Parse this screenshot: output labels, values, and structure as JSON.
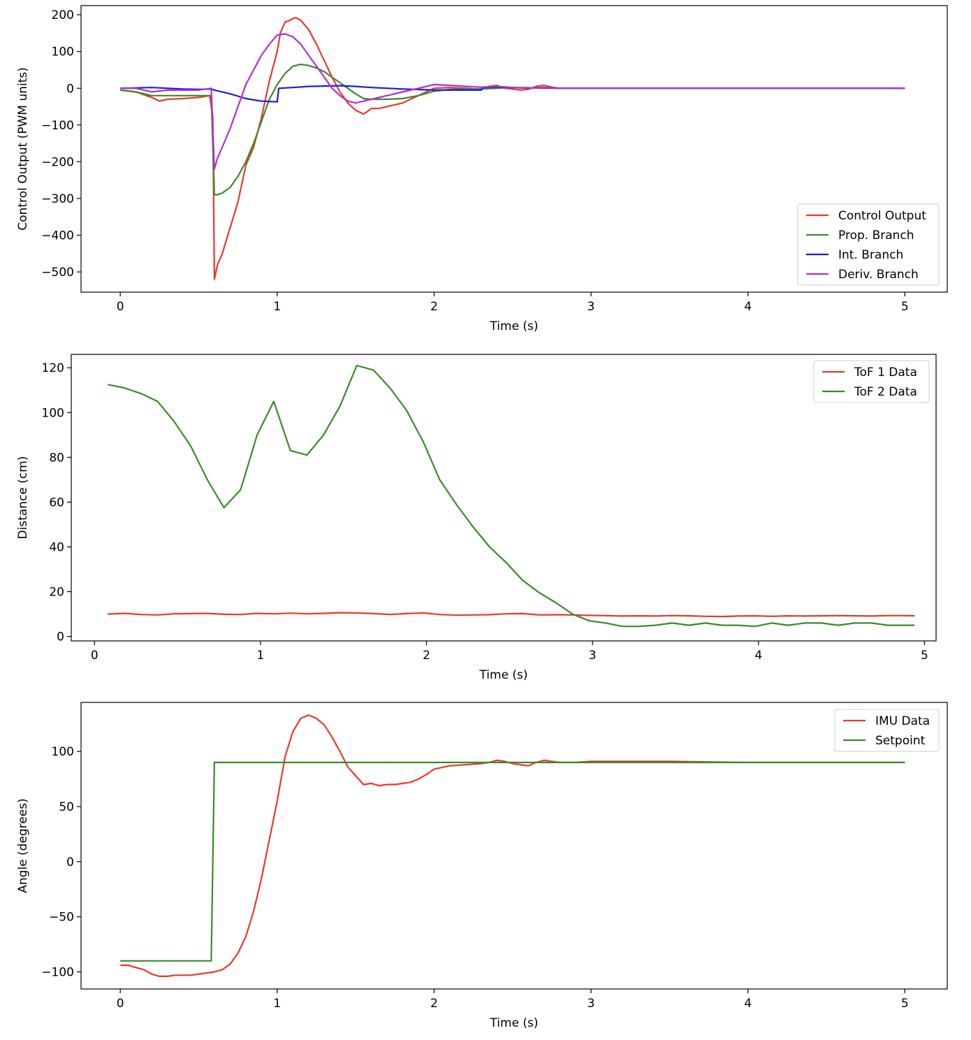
{
  "chart_data": [
    {
      "type": "line",
      "xlabel": "Time (s)",
      "ylabel": "Control Output (PWM units)",
      "xlim": [
        -0.25,
        5.27
      ],
      "ylim": [
        -555,
        225
      ],
      "xticks": [
        0,
        1,
        2,
        3,
        4,
        5
      ],
      "yticks": [
        -500,
        -400,
        -300,
        -200,
        -100,
        0,
        100,
        200
      ],
      "tick_labels_x": [
        "0",
        "1",
        "2",
        "3",
        "4",
        "5"
      ],
      "tick_labels_y": [
        "−500",
        "−400",
        "−300",
        "−200",
        "−100",
        "0",
        "100",
        "200"
      ],
      "legend_position": "lower-right",
      "series": [
        {
          "name": "Control Output",
          "color": "#e8392c",
          "x": [
            0,
            0.1,
            0.2,
            0.25,
            0.3,
            0.4,
            0.5,
            0.57,
            0.59,
            0.6,
            0.62,
            0.65,
            0.7,
            0.75,
            0.8,
            0.85,
            0.9,
            0.95,
            1.0,
            1.02,
            1.05,
            1.08,
            1.1,
            1.12,
            1.15,
            1.2,
            1.25,
            1.3,
            1.35,
            1.4,
            1.45,
            1.5,
            1.55,
            1.57,
            1.6,
            1.65,
            1.7,
            1.8,
            1.9,
            2.0,
            2.1,
            2.2,
            2.3,
            2.35,
            2.4,
            2.45,
            2.5,
            2.55,
            2.6,
            2.65,
            2.7,
            2.75,
            2.8,
            3.0,
            3.5,
            4.0,
            4.5,
            5.0
          ],
          "y": [
            -5,
            -10,
            -25,
            -35,
            -30,
            -28,
            -25,
            -20,
            -80,
            -520,
            -480,
            -450,
            -380,
            -310,
            -210,
            -160,
            -80,
            20,
            100,
            150,
            180,
            185,
            190,
            192,
            185,
            160,
            120,
            75,
            30,
            -10,
            -40,
            -60,
            -70,
            -65,
            -55,
            -55,
            -50,
            -40,
            -20,
            0,
            2,
            0,
            -3,
            5,
            8,
            0,
            -2,
            -5,
            -3,
            5,
            8,
            3,
            0,
            0,
            0,
            0,
            0,
            0
          ]
        },
        {
          "name": "Prop. Branch",
          "color": "#3a8a2a",
          "x": [
            0,
            0.1,
            0.2,
            0.3,
            0.4,
            0.5,
            0.58,
            0.6,
            0.62,
            0.65,
            0.7,
            0.75,
            0.8,
            0.85,
            0.9,
            0.95,
            1.0,
            1.05,
            1.1,
            1.15,
            1.2,
            1.25,
            1.3,
            1.35,
            1.4,
            1.45,
            1.5,
            1.55,
            1.6,
            1.7,
            1.8,
            1.9,
            2.0,
            2.1,
            2.2,
            2.3,
            2.4,
            2.5,
            2.6,
            2.7,
            2.8,
            3.0,
            3.5,
            4.0,
            4.5,
            5.0
          ],
          "y": [
            -5,
            -10,
            -20,
            -20,
            -20,
            -20,
            -20,
            -290,
            -290,
            -285,
            -270,
            -240,
            -200,
            -150,
            -90,
            -30,
            10,
            40,
            60,
            65,
            62,
            55,
            45,
            30,
            15,
            0,
            -15,
            -28,
            -30,
            -30,
            -28,
            -20,
            -8,
            -3,
            -2,
            -2,
            0,
            2,
            0,
            2,
            0,
            0,
            0,
            0,
            0,
            0
          ]
        },
        {
          "name": "Int. Branch",
          "color": "#1a1aee",
          "x": [
            0,
            0.2,
            0.3,
            0.4,
            0.5,
            0.58,
            0.6,
            0.7,
            0.8,
            0.9,
            1.0,
            1.01,
            1.1,
            1.2,
            1.3,
            1.4,
            1.5,
            1.6,
            1.8,
            2.0,
            2.2,
            2.3,
            2.31,
            2.4,
            2.5,
            2.6,
            2.8,
            3.0,
            4.0,
            5.0
          ],
          "y": [
            0,
            2,
            0,
            -2,
            -3,
            -2,
            -5,
            -15,
            -28,
            -35,
            -37,
            0,
            2,
            5,
            6,
            7,
            5,
            2,
            -2,
            -5,
            -5,
            -5,
            2,
            3,
            2,
            1,
            0,
            0,
            0,
            0
          ]
        },
        {
          "name": "Deriv. Branch",
          "color": "#b030d0",
          "x": [
            0,
            0.1,
            0.2,
            0.3,
            0.4,
            0.5,
            0.58,
            0.6,
            0.62,
            0.65,
            0.7,
            0.75,
            0.8,
            0.85,
            0.9,
            0.95,
            1.0,
            1.05,
            1.1,
            1.15,
            1.2,
            1.25,
            1.3,
            1.35,
            1.4,
            1.45,
            1.5,
            1.55,
            1.6,
            1.7,
            1.8,
            1.9,
            2.0,
            2.1,
            2.2,
            2.3,
            2.4,
            2.5,
            2.6,
            2.7,
            2.8,
            3.0,
            4.0,
            5.0
          ],
          "y": [
            0,
            0,
            -10,
            -5,
            -5,
            -5,
            0,
            -220,
            -190,
            -160,
            -110,
            -50,
            10,
            50,
            90,
            120,
            145,
            148,
            140,
            120,
            90,
            60,
            30,
            0,
            -20,
            -35,
            -40,
            -35,
            -30,
            -20,
            -10,
            0,
            10,
            8,
            5,
            3,
            5,
            2,
            0,
            2,
            0,
            0,
            0,
            0
          ]
        }
      ]
    },
    {
      "type": "line",
      "xlabel": "Time (s)",
      "ylabel": "Distance (cm)",
      "xlim": [
        -0.14,
        5.07
      ],
      "ylim": [
        -2,
        126
      ],
      "xticks": [
        0,
        1,
        2,
        3,
        4,
        5
      ],
      "yticks": [
        0,
        20,
        40,
        60,
        80,
        100,
        120
      ],
      "tick_labels_x": [
        "0",
        "1",
        "2",
        "3",
        "4",
        "5"
      ],
      "tick_labels_y": [
        "0",
        "20",
        "40",
        "60",
        "80",
        "100",
        "120"
      ],
      "legend_position": "top-right",
      "series": [
        {
          "name": "ToF 1 Data",
          "color": "#e8392c",
          "x": [
            0.08,
            0.18,
            0.28,
            0.38,
            0.48,
            0.58,
            0.68,
            0.78,
            0.88,
            0.98,
            1.08,
            1.18,
            1.28,
            1.38,
            1.48,
            1.58,
            1.68,
            1.78,
            1.88,
            1.98,
            2.08,
            2.18,
            2.28,
            2.38,
            2.48,
            2.58,
            2.68,
            2.78,
            2.88,
            2.98,
            3.08,
            3.18,
            3.28,
            3.38,
            3.48,
            3.58,
            3.68,
            3.78,
            3.88,
            3.98,
            4.08,
            4.18,
            4.28,
            4.38,
            4.48,
            4.58,
            4.68,
            4.78,
            4.88,
            4.94
          ],
          "y": [
            10,
            10.3,
            9.8,
            9.6,
            10.1,
            10.2,
            10.3,
            9.9,
            9.8,
            10.3,
            10.1,
            10.4,
            10.1,
            10.3,
            10.6,
            10.5,
            10.2,
            9.8,
            10.2,
            10.5,
            9.8,
            9.5,
            9.6,
            9.7,
            10.1,
            10.2,
            9.6,
            9.7,
            9.6,
            9.4,
            9.3,
            9.1,
            9.2,
            9.1,
            9.3,
            9.2,
            9.0,
            8.9,
            9.1,
            9.2,
            9.0,
            9.2,
            9.1,
            9.2,
            9.3,
            9.2,
            9.1,
            9.3,
            9.3,
            9.2
          ]
        },
        {
          "name": "ToF 2 Data",
          "color": "#3a8a2a",
          "x": [
            0.08,
            0.18,
            0.28,
            0.38,
            0.48,
            0.58,
            0.68,
            0.78,
            0.88,
            0.98,
            1.08,
            1.18,
            1.28,
            1.38,
            1.48,
            1.58,
            1.68,
            1.78,
            1.88,
            1.98,
            2.08,
            2.18,
            2.28,
            2.38,
            2.48,
            2.58,
            2.68,
            2.78,
            2.88,
            2.98,
            3.08,
            3.18,
            3.28,
            3.38,
            3.48,
            3.58,
            3.68,
            3.78,
            3.88,
            3.98,
            4.08,
            4.18,
            4.28,
            4.38,
            4.48,
            4.58,
            4.68,
            4.78,
            4.88,
            4.94
          ],
          "y": [
            112.5,
            111,
            108.5,
            105,
            96,
            85,
            70,
            57.5,
            65.5,
            90,
            105,
            83,
            81,
            90,
            103,
            121,
            119,
            111,
            101,
            87,
            70,
            59,
            49,
            40,
            33,
            25,
            19.5,
            15,
            10,
            7,
            6,
            4.5,
            4.5,
            5,
            6,
            5,
            6,
            5,
            5,
            4.5,
            6,
            5,
            6,
            6,
            5,
            6,
            6,
            5,
            5,
            5
          ]
        }
      ]
    },
    {
      "type": "line",
      "xlabel": "Time (s)",
      "ylabel": "Angle (degrees)",
      "xlim": [
        -0.25,
        5.27
      ],
      "ylim": [
        -115.5,
        144.5
      ],
      "xticks": [
        0,
        1,
        2,
        3,
        4,
        5
      ],
      "yticks": [
        -100,
        -50,
        0,
        50,
        100
      ],
      "tick_labels_x": [
        "0",
        "1",
        "2",
        "3",
        "4",
        "5"
      ],
      "tick_labels_y": [
        "−100",
        "−50",
        "0",
        "50",
        "100"
      ],
      "legend_position": "top-right",
      "series": [
        {
          "name": "IMU Data",
          "color": "#e8392c",
          "x": [
            0,
            0.05,
            0.1,
            0.15,
            0.2,
            0.25,
            0.3,
            0.35,
            0.4,
            0.45,
            0.5,
            0.55,
            0.6,
            0.65,
            0.7,
            0.75,
            0.8,
            0.85,
            0.9,
            0.95,
            1.0,
            1.05,
            1.1,
            1.15,
            1.2,
            1.25,
            1.3,
            1.35,
            1.4,
            1.45,
            1.5,
            1.55,
            1.6,
            1.65,
            1.7,
            1.75,
            1.8,
            1.85,
            1.9,
            1.95,
            2.0,
            2.1,
            2.2,
            2.3,
            2.35,
            2.4,
            2.45,
            2.5,
            2.55,
            2.6,
            2.65,
            2.7,
            2.75,
            2.8,
            2.9,
            3.0,
            3.5,
            4.0,
            4.5,
            5.0
          ],
          "y": [
            -94,
            -94,
            -96,
            -98,
            -102,
            -104,
            -104,
            -103,
            -103,
            -103,
            -102,
            -101,
            -100,
            -98,
            -93,
            -83,
            -68,
            -45,
            -15,
            20,
            55,
            95,
            118,
            130,
            133,
            130,
            124,
            113,
            100,
            86,
            78,
            70,
            71,
            69,
            70,
            70,
            71,
            72,
            75,
            79,
            84,
            87,
            88,
            89,
            90,
            92,
            91,
            89,
            88,
            87,
            90,
            92,
            91,
            90,
            90,
            91,
            91,
            90,
            90,
            90
          ]
        },
        {
          "name": "Setpoint",
          "color": "#3a8a2a",
          "x": [
            0,
            0.58,
            0.6,
            5.0
          ],
          "y": [
            -90,
            -90,
            90,
            90
          ]
        }
      ]
    }
  ]
}
